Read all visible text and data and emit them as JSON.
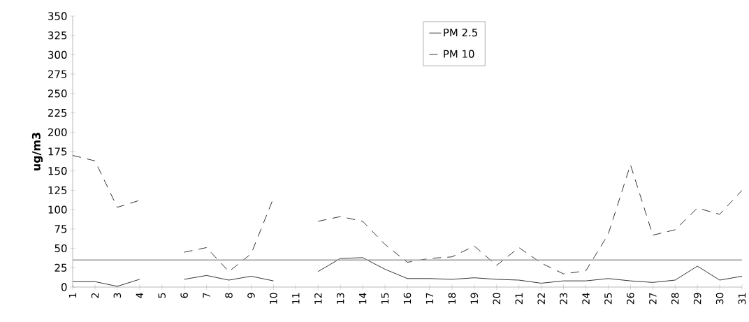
{
  "chart_data": {
    "type": "line",
    "ylabel": "ug/m3",
    "categories": [
      "1",
      "2",
      "3",
      "4",
      "5",
      "6",
      "7",
      "8",
      "9",
      "10",
      "11",
      "12",
      "13",
      "14",
      "15",
      "16",
      "17",
      "18",
      "19",
      "20",
      "21",
      "22",
      "23",
      "24",
      "25",
      "26",
      "27",
      "28",
      "29",
      "30",
      "31"
    ],
    "series": [
      {
        "name": "PM 2.5",
        "color": "#333333",
        "line_style": "solid",
        "values": [
          7,
          7,
          1,
          10,
          null,
          10,
          15,
          9,
          14,
          8,
          null,
          20,
          37,
          38,
          23,
          11,
          11,
          10,
          12,
          10,
          9,
          5,
          8,
          8,
          11,
          8,
          6,
          9,
          27,
          9,
          14
        ]
      },
      {
        "name": "PM 10",
        "color": "#333333",
        "line_style": "dashed",
        "values": [
          170,
          163,
          103,
          112,
          null,
          45,
          51,
          20,
          43,
          115,
          null,
          85,
          91,
          85,
          55,
          32,
          37,
          39,
          53,
          28,
          51,
          31,
          17,
          21,
          68,
          158,
          67,
          74,
          102,
          94,
          125
        ]
      }
    ],
    "ylim": [
      0,
      350
    ],
    "yticks": [
      0,
      25,
      50,
      75,
      100,
      125,
      150,
      175,
      200,
      225,
      250,
      275,
      300,
      325,
      350
    ],
    "ref_lines": [
      {
        "axis": "y",
        "value": 35,
        "color": "#999999"
      }
    ],
    "grid": false,
    "legend": "top",
    "marker": "none"
  }
}
